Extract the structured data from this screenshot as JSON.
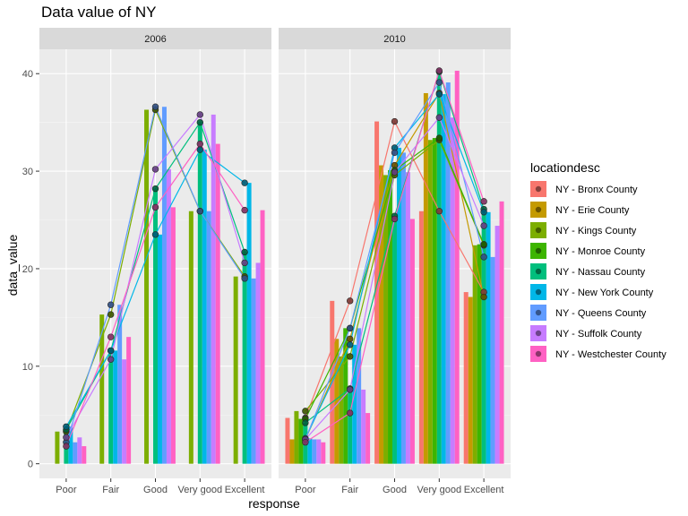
{
  "chart_data": {
    "type": "bar",
    "title": "Data value of NY",
    "xlabel": "response",
    "ylabel": "data_value",
    "ylim": [
      -1.5,
      42.5
    ],
    "yticks": [
      "0",
      "10",
      "20",
      "30",
      "40"
    ],
    "ytick_values": [
      0,
      10,
      20,
      30,
      40
    ],
    "grid": true,
    "legend_position": "right",
    "legend_title": "locationdesc",
    "categories": [
      "Poor",
      "Fair",
      "Good",
      "Very good",
      "Excellent"
    ],
    "panels": [
      {
        "label": "2006",
        "series": [
          {
            "name": "NY - Bronx County",
            "values": [
              null,
              null,
              null,
              null,
              null
            ]
          },
          {
            "name": "NY - Erie County",
            "values": [
              null,
              null,
              null,
              null,
              null
            ]
          },
          {
            "name": "NY - Kings County",
            "values": [
              3.3,
              15.3,
              36.3,
              25.9,
              19.2
            ]
          },
          {
            "name": "NY - Monroe County",
            "values": [
              null,
              null,
              null,
              null,
              null
            ]
          },
          {
            "name": "NY - Nassau County",
            "values": [
              3.5,
              11.6,
              28.2,
              35.0,
              21.7
            ]
          },
          {
            "name": "NY - New York County",
            "values": [
              3.8,
              11.6,
              23.5,
              32.2,
              28.8
            ]
          },
          {
            "name": "NY - Queens County",
            "values": [
              2.2,
              16.3,
              36.6,
              25.9,
              19.0
            ]
          },
          {
            "name": "NY - Suffolk County",
            "values": [
              2.7,
              10.7,
              30.2,
              35.8,
              20.6
            ]
          },
          {
            "name": "NY - Westchester County",
            "values": [
              1.8,
              13.0,
              26.3,
              32.8,
              26.0
            ]
          }
        ]
      },
      {
        "label": "2010",
        "series": [
          {
            "name": "NY - Bronx County",
            "values": [
              4.7,
              16.7,
              35.1,
              25.9,
              17.6
            ]
          },
          {
            "name": "NY - Erie County",
            "values": [
              2.5,
              12.8,
              30.6,
              38.0,
              17.1
            ]
          },
          {
            "name": "NY - Kings County",
            "values": [
              5.4,
              11.0,
              29.6,
              33.2,
              22.4
            ]
          },
          {
            "name": "NY - Monroe County",
            "values": [
              4.6,
              13.9,
              30.1,
              33.4,
              22.5
            ]
          },
          {
            "name": "NY - Nassau County",
            "values": [
              4.2,
              7.7,
              25.4,
              40.2,
              26.1
            ]
          },
          {
            "name": "NY - New York County",
            "values": [
              2.6,
              12.2,
              32.4,
              37.9,
              25.8
            ]
          },
          {
            "name": "NY - Queens County",
            "values": [
              2.5,
              13.9,
              31.9,
              39.1,
              21.2
            ]
          },
          {
            "name": "NY - Suffolk County",
            "values": [
              2.5,
              7.6,
              29.9,
              35.5,
              24.4
            ]
          },
          {
            "name": "NY - Westchester County",
            "values": [
              2.2,
              5.2,
              25.1,
              40.3,
              26.9
            ]
          }
        ]
      }
    ]
  },
  "colors": {
    "NY - Bronx County": "#F8766D",
    "NY - Erie County": "#C49A00",
    "NY - Kings County": "#7CAE00",
    "NY - Monroe County": "#3DB500",
    "NY - Nassau County": "#00BF7D",
    "NY - New York County": "#00B7E8",
    "NY - Queens County": "#619CFF",
    "NY - Suffolk County": "#C77CFF",
    "NY - Westchester County": "#FF61C3",
    "panel_bg": "#EBEBEB",
    "strip_bg": "#D9D9D9",
    "grid_major": "#FFFFFF"
  }
}
